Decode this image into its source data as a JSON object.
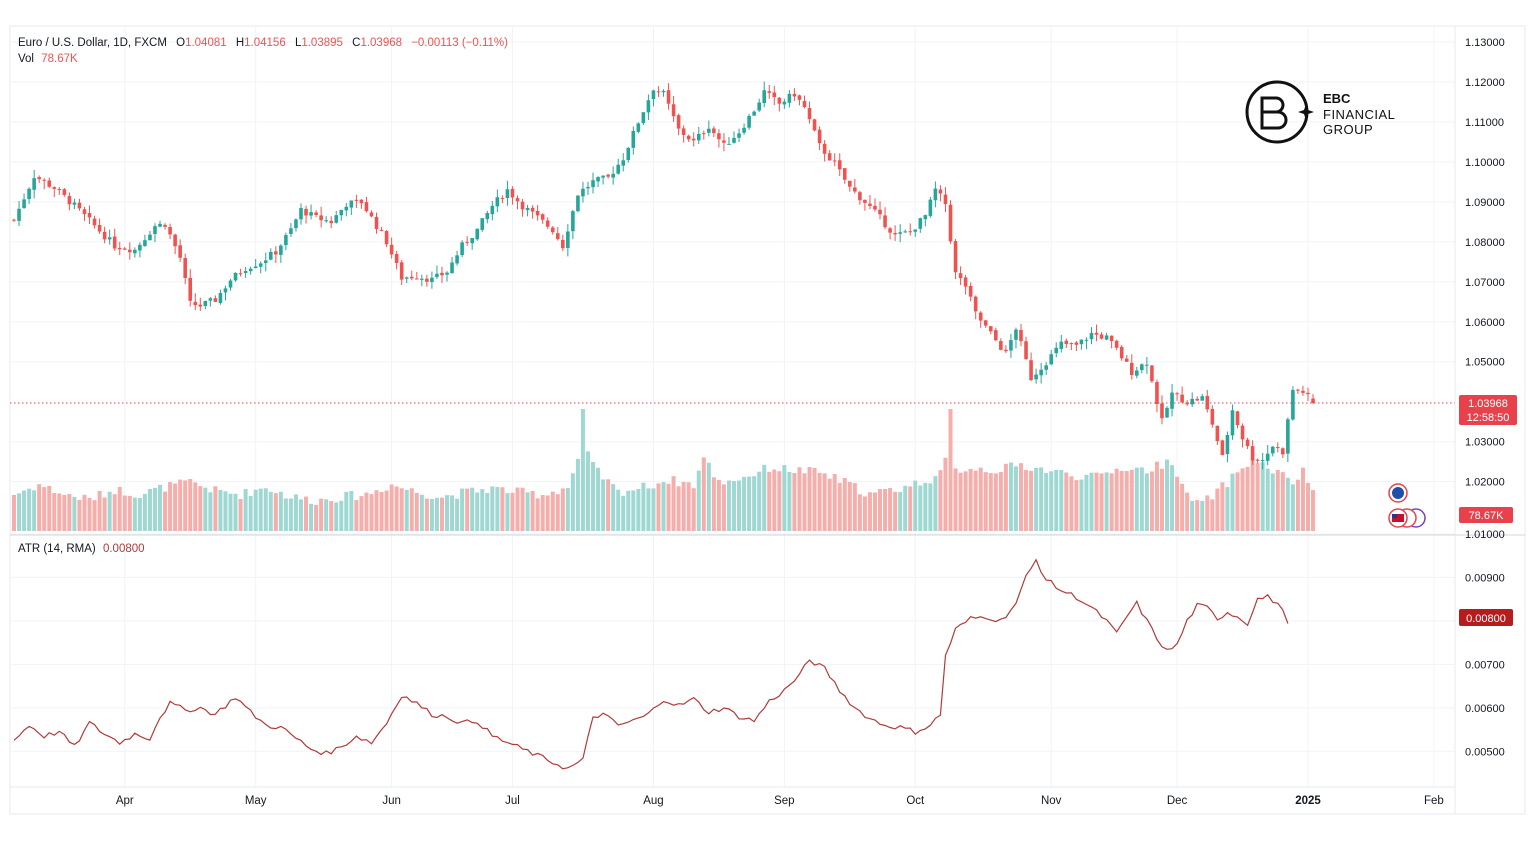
{
  "header": {
    "symbol_title": "Euro / U.S. Dollar, 1D, FXCM",
    "o_label": "O",
    "o_value": "1.04081",
    "h_label": "H",
    "h_value": "1.04156",
    "l_label": "L",
    "l_value": "1.03895",
    "c_label": "C",
    "c_value": "1.03968",
    "change": "−0.00113 (−0.11%)",
    "vol_label": "Vol",
    "vol_value": "78.67K"
  },
  "logo": {
    "line1": "EBC",
    "line2": "FINANCIAL",
    "line3": "GROUP"
  },
  "price_tag": {
    "price": "1.03968",
    "countdown": "12:58:50"
  },
  "volume_tag": "78.67K",
  "atr_tag": "0.00800",
  "atr_header": {
    "label": "ATR (14, RMA)",
    "value": "0.00800"
  },
  "colors": {
    "up": "#26a69a",
    "down": "#ef5350",
    "vol_up": "#9fd8d2",
    "vol_down": "#f4aeab",
    "atr_line": "#b13a3a",
    "tag_red": "#e8414b",
    "atr_tag": "#b71c1c"
  },
  "chart_data": [
    {
      "type": "candlestick",
      "title": "Euro / U.S. Dollar, 1D, FXCM",
      "x_axis_labels": [
        "Apr",
        "May",
        "Jun",
        "Jul",
        "Aug",
        "Sep",
        "Oct",
        "Nov",
        "Dec",
        "2025",
        "Feb"
      ],
      "y_axis_labels": [
        "1.13000",
        "1.12000",
        "1.11000",
        "1.10000",
        "1.09000",
        "1.08000",
        "1.07000",
        "1.06000",
        "1.05000",
        "1.03000",
        "1.02000",
        "1.01000"
      ],
      "ylim": [
        1.01,
        1.13
      ],
      "last_price": 1.03968,
      "close_path": [
        [
          0,
          1.0855
        ],
        [
          4,
          1.0965
        ],
        [
          8,
          1.0935
        ],
        [
          12,
          1.089
        ],
        [
          16,
          1.084
        ],
        [
          20,
          1.079
        ],
        [
          24,
          1.078
        ],
        [
          28,
          1.084
        ],
        [
          30,
          1.0845
        ],
        [
          33,
          1.076
        ],
        [
          35,
          1.0645
        ],
        [
          37,
          1.064
        ],
        [
          40,
          1.0655
        ],
        [
          43,
          1.0705
        ],
        [
          46,
          1.0735
        ],
        [
          49,
          1.075
        ],
        [
          52,
          1.0775
        ],
        [
          55,
          1.083
        ],
        [
          57,
          1.088
        ],
        [
          60,
          1.086
        ],
        [
          63,
          1.085
        ],
        [
          66,
          1.0895
        ],
        [
          69,
          1.09
        ],
        [
          71,
          1.086
        ],
        [
          74,
          1.08
        ],
        [
          77,
          1.071
        ],
        [
          80,
          1.0715
        ],
        [
          83,
          1.0705
        ],
        [
          86,
          1.0725
        ],
        [
          89,
          1.079
        ],
        [
          92,
          1.083
        ],
        [
          95,
          1.089
        ],
        [
          98,
          1.093
        ],
        [
          101,
          1.089
        ],
        [
          104,
          1.086
        ],
        [
          107,
          1.083
        ],
        [
          109,
          1.079
        ],
        [
          112,
          1.092
        ],
        [
          115,
          1.095
        ],
        [
          118,
          1.096
        ],
        [
          121,
          1.101
        ],
        [
          124,
          1.11
        ],
        [
          127,
          1.1185
        ],
        [
          129,
          1.117
        ],
        [
          132,
          1.108
        ],
        [
          135,
          1.105
        ],
        [
          138,
          1.109
        ],
        [
          141,
          1.104
        ],
        [
          144,
          1.1075
        ],
        [
          147,
          1.113
        ],
        [
          149,
          1.1175
        ],
        [
          152,
          1.1145
        ],
        [
          155,
          1.117
        ],
        [
          157,
          1.1135
        ],
        [
          160,
          1.104
        ],
        [
          163,
          1.0995
        ],
        [
          166,
          1.0935
        ],
        [
          169,
          1.09
        ],
        [
          172,
          1.086
        ],
        [
          175,
          1.0815
        ],
        [
          178,
          1.0825
        ],
        [
          181,
          1.0865
        ],
        [
          183,
          1.093
        ],
        [
          185,
          1.0895
        ],
        [
          187,
          1.072
        ],
        [
          189,
          1.069
        ],
        [
          191,
          1.062
        ],
        [
          194,
          1.057
        ],
        [
          197,
          1.052
        ],
        [
          199,
          1.0585
        ],
        [
          202,
          1.046
        ],
        [
          205,
          1.05
        ],
        [
          208,
          1.0545
        ],
        [
          211,
          1.054
        ],
        [
          214,
          1.057
        ],
        [
          217,
          1.056
        ],
        [
          219,
          1.053
        ],
        [
          222,
          1.0475
        ],
        [
          225,
          1.05
        ],
        [
          228,
          1.035
        ],
        [
          230,
          1.042
        ],
        [
          233,
          1.04
        ],
        [
          236,
          1.041
        ],
        [
          238,
          1.0345
        ],
        [
          240,
          1.026
        ],
        [
          242,
          1.038
        ],
        [
          244,
          1.031
        ],
        [
          246,
          1.026
        ],
        [
          248,
          1.0255
        ],
        [
          250,
          1.029
        ],
        [
          252,
          1.0275
        ],
        [
          254,
          1.043
        ],
        [
          256,
          1.0425
        ],
        [
          258,
          1.0397
        ]
      ]
    },
    {
      "type": "bar",
      "title": "Vol",
      "last_value": "78.67K",
      "volume_path": [
        [
          0,
          0.3
        ],
        [
          5,
          0.38
        ],
        [
          10,
          0.3
        ],
        [
          15,
          0.26
        ],
        [
          20,
          0.34
        ],
        [
          25,
          0.3
        ],
        [
          30,
          0.36
        ],
        [
          35,
          0.4
        ],
        [
          40,
          0.33
        ],
        [
          45,
          0.3
        ],
        [
          50,
          0.36
        ],
        [
          55,
          0.28
        ],
        [
          60,
          0.25
        ],
        [
          65,
          0.28
        ],
        [
          70,
          0.3
        ],
        [
          75,
          0.38
        ],
        [
          80,
          0.32
        ],
        [
          85,
          0.28
        ],
        [
          90,
          0.32
        ],
        [
          95,
          0.35
        ],
        [
          100,
          0.32
        ],
        [
          105,
          0.3
        ],
        [
          110,
          0.36
        ],
        [
          112,
          0.58
        ],
        [
          113,
          1.0
        ],
        [
          114,
          0.62
        ],
        [
          116,
          0.48
        ],
        [
          120,
          0.32
        ],
        [
          125,
          0.36
        ],
        [
          130,
          0.42
        ],
        [
          135,
          0.38
        ],
        [
          137,
          0.6
        ],
        [
          140,
          0.4
        ],
        [
          145,
          0.44
        ],
        [
          150,
          0.52
        ],
        [
          155,
          0.5
        ],
        [
          160,
          0.48
        ],
        [
          165,
          0.4
        ],
        [
          170,
          0.3
        ],
        [
          175,
          0.34
        ],
        [
          180,
          0.4
        ],
        [
          184,
          0.46
        ],
        [
          185,
          0.58
        ],
        [
          186,
          1.0
        ],
        [
          187,
          0.5
        ],
        [
          190,
          0.52
        ],
        [
          195,
          0.5
        ],
        [
          200,
          0.54
        ],
        [
          205,
          0.5
        ],
        [
          210,
          0.46
        ],
        [
          215,
          0.44
        ],
        [
          220,
          0.52
        ],
        [
          225,
          0.5
        ],
        [
          230,
          0.58
        ],
        [
          233,
          0.28
        ],
        [
          236,
          0.22
        ],
        [
          240,
          0.36
        ],
        [
          244,
          0.52
        ],
        [
          246,
          0.58
        ],
        [
          250,
          0.5
        ],
        [
          254,
          0.4
        ],
        [
          256,
          0.48
        ],
        [
          258,
          0.34
        ]
      ]
    },
    {
      "type": "line",
      "title": "ATR (14, RMA)",
      "y_axis_labels": [
        "0.00900",
        "0.00800",
        "0.00700",
        "0.00600",
        "0.00500"
      ],
      "ylim": [
        0.0044,
        0.0098
      ],
      "last_value": 0.008,
      "atr_path": [
        [
          0,
          0.00525
        ],
        [
          3,
          0.0056
        ],
        [
          6,
          0.00535
        ],
        [
          9,
          0.00545
        ],
        [
          12,
          0.0051
        ],
        [
          15,
          0.00565
        ],
        [
          18,
          0.0054
        ],
        [
          21,
          0.0052
        ],
        [
          24,
          0.0054
        ],
        [
          27,
          0.0053
        ],
        [
          29,
          0.0058
        ],
        [
          31,
          0.0061
        ],
        [
          34,
          0.00595
        ],
        [
          37,
          0.006
        ],
        [
          40,
          0.00585
        ],
        [
          44,
          0.00625
        ],
        [
          47,
          0.0059
        ],
        [
          50,
          0.0056
        ],
        [
          53,
          0.00555
        ],
        [
          56,
          0.0053
        ],
        [
          59,
          0.00505
        ],
        [
          62,
          0.00495
        ],
        [
          65,
          0.0051
        ],
        [
          68,
          0.00535
        ],
        [
          71,
          0.0052
        ],
        [
          74,
          0.00565
        ],
        [
          77,
          0.0063
        ],
        [
          80,
          0.0061
        ],
        [
          83,
          0.00585
        ],
        [
          86,
          0.0058
        ],
        [
          89,
          0.00565
        ],
        [
          92,
          0.0057
        ],
        [
          95,
          0.00535
        ],
        [
          98,
          0.0052
        ],
        [
          101,
          0.00505
        ],
        [
          104,
          0.0049
        ],
        [
          107,
          0.00475
        ],
        [
          110,
          0.0046
        ],
        [
          113,
          0.0048
        ],
        [
          115,
          0.0058
        ],
        [
          117,
          0.00585
        ],
        [
          120,
          0.0056
        ],
        [
          123,
          0.0057
        ],
        [
          126,
          0.00585
        ],
        [
          129,
          0.0062
        ],
        [
          132,
          0.00605
        ],
        [
          135,
          0.0062
        ],
        [
          138,
          0.0059
        ],
        [
          141,
          0.006
        ],
        [
          144,
          0.0058
        ],
        [
          147,
          0.0057
        ],
        [
          150,
          0.00615
        ],
        [
          153,
          0.0064
        ],
        [
          156,
          0.00675
        ],
        [
          158,
          0.0071
        ],
        [
          161,
          0.0069
        ],
        [
          164,
          0.0064
        ],
        [
          167,
          0.006
        ],
        [
          170,
          0.00575
        ],
        [
          173,
          0.0056
        ],
        [
          176,
          0.00555
        ],
        [
          179,
          0.00545
        ],
        [
          182,
          0.0056
        ],
        [
          184,
          0.00585
        ],
        [
          185,
          0.0072
        ],
        [
          187,
          0.0078
        ],
        [
          190,
          0.00805
        ],
        [
          193,
          0.0081
        ],
        [
          196,
          0.008
        ],
        [
          199,
          0.0084
        ],
        [
          201,
          0.009
        ],
        [
          203,
          0.0094
        ],
        [
          205,
          0.00895
        ],
        [
          208,
          0.0087
        ],
        [
          211,
          0.00855
        ],
        [
          214,
          0.0083
        ],
        [
          217,
          0.008
        ],
        [
          219,
          0.0077
        ],
        [
          221,
          0.0081
        ],
        [
          223,
          0.0084
        ],
        [
          225,
          0.008
        ],
        [
          227,
          0.0076
        ],
        [
          229,
          0.0073
        ],
        [
          231,
          0.00745
        ],
        [
          233,
          0.008
        ],
        [
          235,
          0.00835
        ],
        [
          237,
          0.0083
        ],
        [
          239,
          0.00805
        ],
        [
          241,
          0.0082
        ],
        [
          243,
          0.0081
        ],
        [
          245,
          0.00795
        ],
        [
          247,
          0.0085
        ],
        [
          249,
          0.00855
        ],
        [
          251,
          0.0084
        ],
        [
          253,
          0.008
        ]
      ]
    }
  ]
}
